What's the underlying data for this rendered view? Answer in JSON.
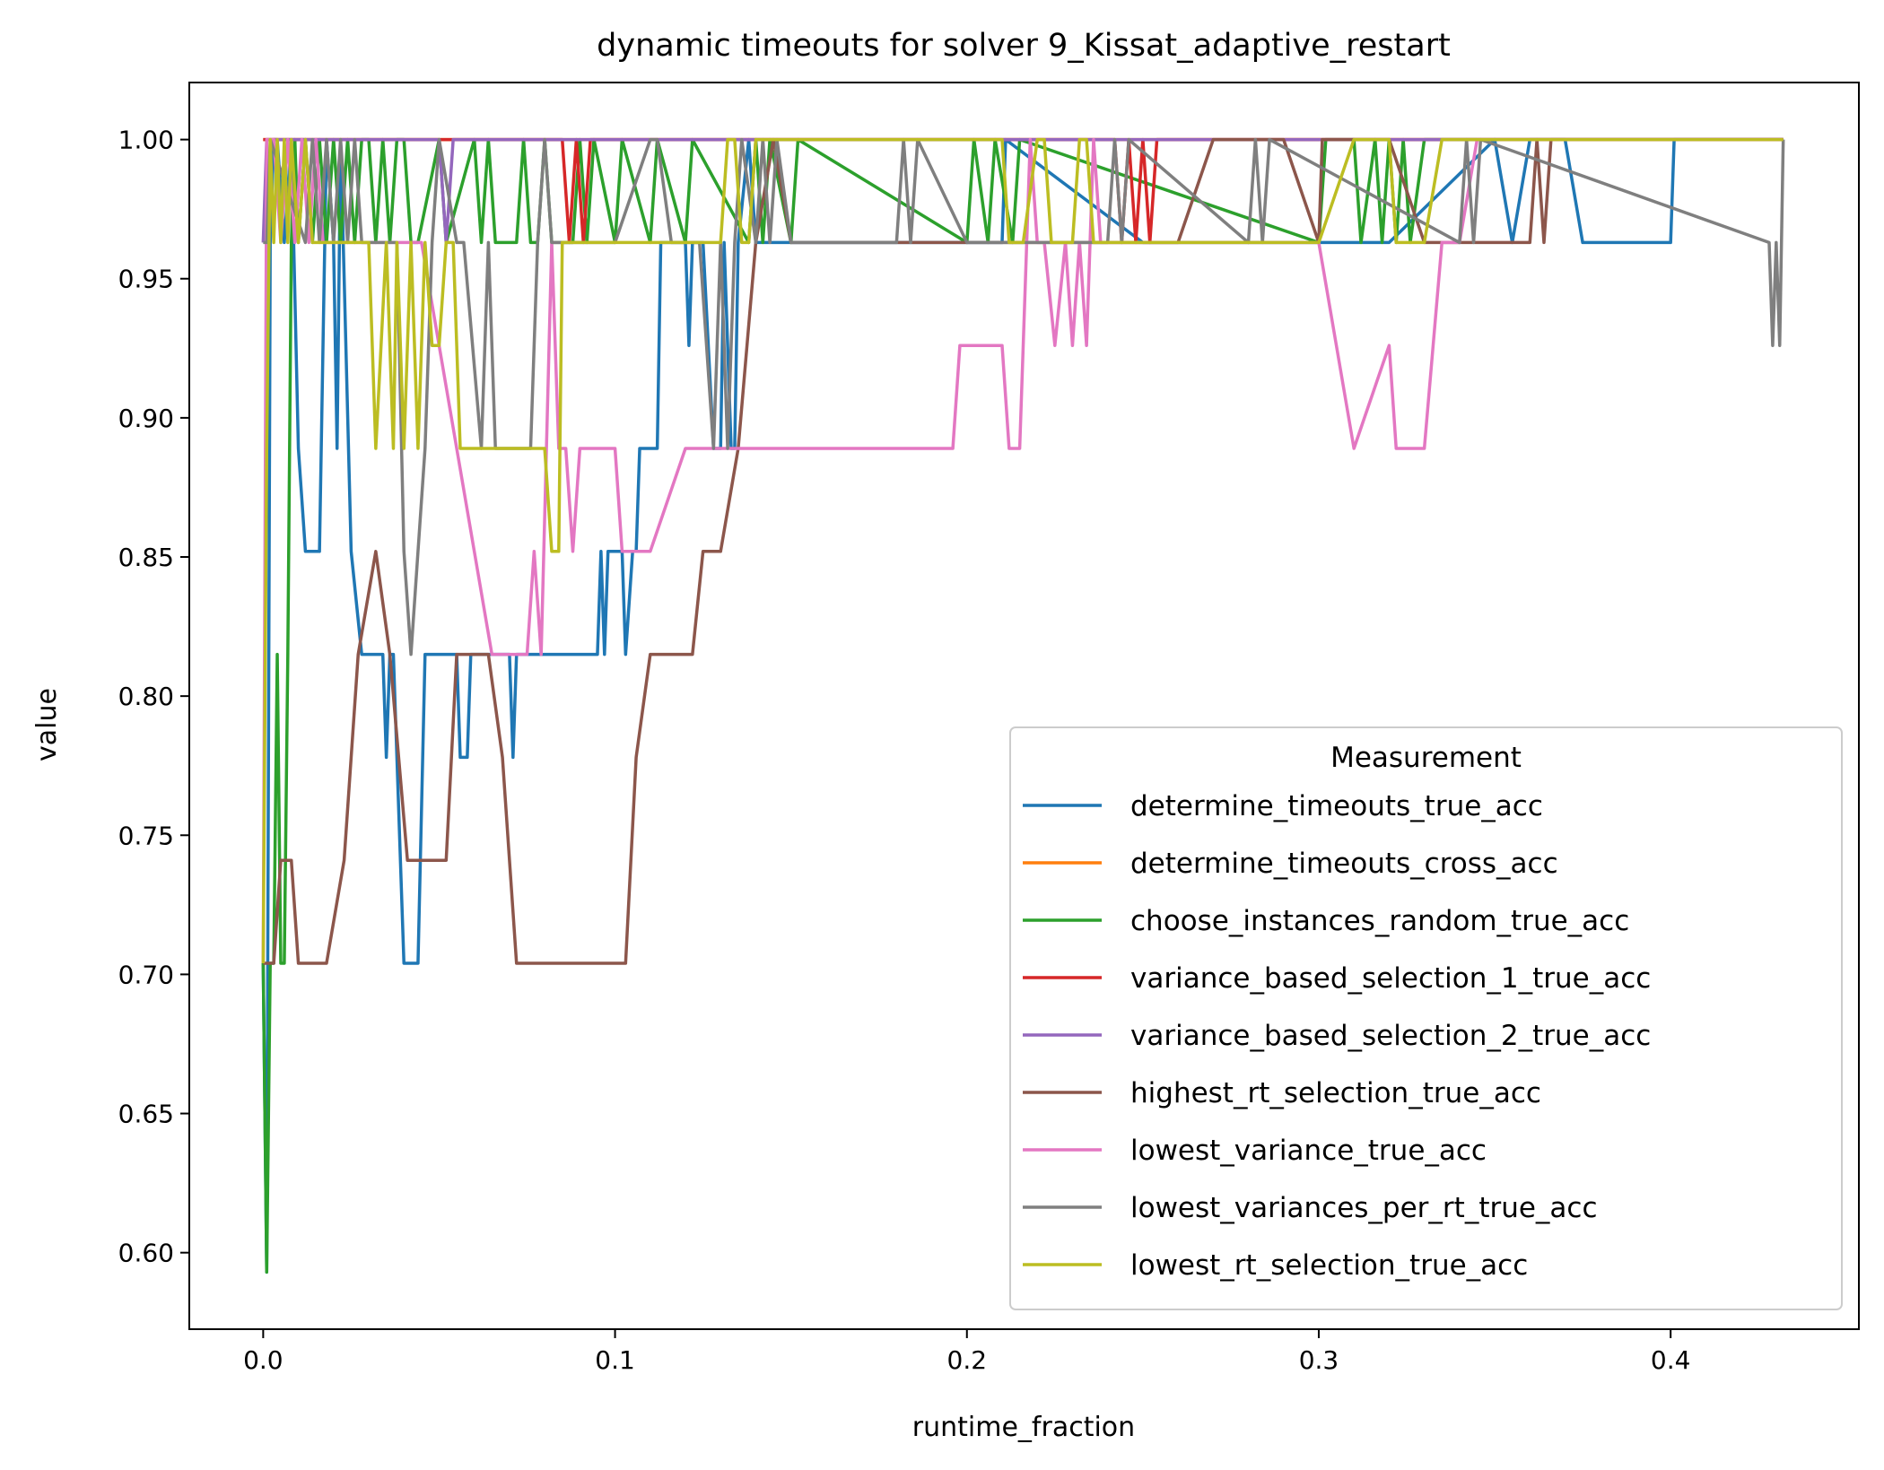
{
  "chart_data": {
    "type": "line",
    "title": "dynamic timeouts for solver 9_Kissat_adaptive_restart",
    "xlabel": "runtime_fraction",
    "ylabel": "value",
    "xlim": [
      -0.021,
      0.4535
    ],
    "ylim": [
      0.5725,
      1.0205
    ],
    "xticks": [
      0.0,
      0.1,
      0.2,
      0.3,
      0.4
    ],
    "xtick_labels": [
      "0.0",
      "0.1",
      "0.2",
      "0.3",
      "0.4"
    ],
    "yticks": [
      0.6,
      0.65,
      0.7,
      0.75,
      0.8,
      0.85,
      0.9,
      0.95,
      1.0
    ],
    "ytick_labels": [
      "0.60",
      "0.65",
      "0.70",
      "0.75",
      "0.80",
      "0.85",
      "0.90",
      "0.95",
      "1.00"
    ],
    "grid": false,
    "legend": {
      "title": "Measurement",
      "placement": "lower-right"
    },
    "series": [
      {
        "name": "determine_timeouts_true_acc",
        "color": "#1f77b4",
        "x": [
          0.0,
          0.001,
          0.002,
          0.003,
          0.004,
          0.006,
          0.008,
          0.01,
          0.012,
          0.016,
          0.018,
          0.02,
          0.021,
          0.022,
          0.025,
          0.028,
          0.034,
          0.035,
          0.036,
          0.037,
          0.04,
          0.044,
          0.046,
          0.047,
          0.055,
          0.056,
          0.058,
          0.059,
          0.06,
          0.07,
          0.071,
          0.072,
          0.075,
          0.095,
          0.096,
          0.097,
          0.098,
          0.102,
          0.103,
          0.105,
          0.106,
          0.107,
          0.112,
          0.113,
          0.114,
          0.12,
          0.121,
          0.122,
          0.124,
          0.125,
          0.128,
          0.13,
          0.131,
          0.133,
          0.134,
          0.135,
          0.138,
          0.14,
          0.141,
          0.15,
          0.2,
          0.21,
          0.211,
          0.25,
          0.3,
          0.32,
          0.35,
          0.355,
          0.36,
          0.37,
          0.375,
          0.4,
          0.401,
          0.432
        ],
        "y": [
          0.704,
          0.593,
          0.963,
          1.0,
          1.0,
          0.963,
          1.0,
          0.889,
          0.852,
          0.852,
          1.0,
          0.963,
          0.889,
          1.0,
          0.852,
          0.815,
          0.815,
          0.778,
          0.815,
          0.815,
          0.704,
          0.704,
          0.815,
          0.815,
          0.815,
          0.778,
          0.778,
          0.815,
          0.815,
          0.815,
          0.778,
          0.815,
          0.815,
          0.815,
          0.852,
          0.815,
          0.852,
          0.852,
          0.815,
          0.852,
          0.852,
          0.889,
          0.889,
          0.963,
          0.963,
          0.963,
          0.926,
          0.963,
          0.963,
          0.963,
          0.889,
          0.889,
          0.963,
          0.889,
          0.889,
          0.963,
          1.0,
          0.963,
          0.963,
          0.963,
          0.963,
          0.963,
          1.0,
          0.963,
          0.963,
          0.963,
          1.0,
          0.963,
          1.0,
          1.0,
          0.963,
          0.963,
          1.0,
          1.0
        ]
      },
      {
        "name": "determine_timeouts_cross_acc",
        "color": "#ff7f0e",
        "x": [
          0.0,
          0.001,
          0.432
        ],
        "y": [
          1.0,
          1.0,
          1.0
        ]
      },
      {
        "name": "choose_instances_random_true_acc",
        "color": "#2ca02c",
        "x": [
          0.0,
          0.001,
          0.002,
          0.003,
          0.004,
          0.005,
          0.006,
          0.007,
          0.008,
          0.009,
          0.01,
          0.012,
          0.014,
          0.016,
          0.018,
          0.02,
          0.022,
          0.024,
          0.026,
          0.028,
          0.03,
          0.032,
          0.034,
          0.036,
          0.038,
          0.04,
          0.042,
          0.044,
          0.05,
          0.052,
          0.06,
          0.062,
          0.064,
          0.066,
          0.068,
          0.07,
          0.072,
          0.074,
          0.076,
          0.078,
          0.08,
          0.082,
          0.088,
          0.09,
          0.092,
          0.094,
          0.1,
          0.102,
          0.11,
          0.112,
          0.12,
          0.122,
          0.138,
          0.14,
          0.142,
          0.144,
          0.15,
          0.152,
          0.2,
          0.202,
          0.206,
          0.208,
          0.213,
          0.215,
          0.3,
          0.302,
          0.31,
          0.312,
          0.316,
          0.318,
          0.32,
          0.322,
          0.324,
          0.326,
          0.33,
          0.432
        ],
        "y": [
          0.704,
          0.593,
          0.704,
          0.704,
          0.815,
          0.704,
          0.704,
          0.815,
          0.963,
          1.0,
          0.963,
          1.0,
          0.963,
          1.0,
          0.963,
          1.0,
          0.963,
          1.0,
          0.963,
          1.0,
          1.0,
          0.963,
          1.0,
          0.963,
          1.0,
          1.0,
          0.963,
          0.963,
          1.0,
          0.963,
          1.0,
          0.963,
          1.0,
          0.963,
          0.963,
          0.963,
          0.963,
          1.0,
          0.963,
          0.963,
          1.0,
          0.963,
          0.963,
          1.0,
          0.963,
          1.0,
          0.963,
          1.0,
          0.963,
          1.0,
          0.963,
          1.0,
          0.963,
          1.0,
          0.963,
          1.0,
          0.963,
          1.0,
          0.963,
          1.0,
          0.963,
          1.0,
          0.963,
          1.0,
          0.963,
          1.0,
          1.0,
          0.963,
          1.0,
          0.963,
          1.0,
          0.963,
          1.0,
          0.963,
          1.0,
          1.0
        ]
      },
      {
        "name": "variance_based_selection_1_true_acc",
        "color": "#d62728",
        "x": [
          0.0,
          0.001,
          0.085,
          0.087,
          0.089,
          0.091,
          0.093,
          0.2,
          0.242,
          0.244,
          0.246,
          0.248,
          0.25,
          0.252,
          0.254,
          0.432
        ],
        "y": [
          1.0,
          1.0,
          1.0,
          0.963,
          1.0,
          0.963,
          1.0,
          1.0,
          1.0,
          0.963,
          1.0,
          0.963,
          1.0,
          0.963,
          1.0,
          1.0
        ]
      },
      {
        "name": "variance_based_selection_2_true_acc",
        "color": "#9467bd",
        "x": [
          0.0,
          0.001,
          0.002,
          0.05,
          0.052,
          0.054,
          0.432
        ],
        "y": [
          0.963,
          1.0,
          1.0,
          1.0,
          0.963,
          1.0,
          1.0
        ]
      },
      {
        "name": "highest_rt_selection_true_acc",
        "color": "#8c564b",
        "x": [
          0.0,
          0.003,
          0.005,
          0.008,
          0.01,
          0.014,
          0.018,
          0.023,
          0.027,
          0.032,
          0.036,
          0.041,
          0.045,
          0.049,
          0.052,
          0.055,
          0.06,
          0.064,
          0.068,
          0.07,
          0.072,
          0.08,
          0.09,
          0.1,
          0.103,
          0.106,
          0.11,
          0.114,
          0.118,
          0.122,
          0.125,
          0.127,
          0.13,
          0.135,
          0.14,
          0.145,
          0.15,
          0.26,
          0.27,
          0.28,
          0.29,
          0.3,
          0.301,
          0.32,
          0.33,
          0.34,
          0.35,
          0.36,
          0.362,
          0.364,
          0.366,
          0.432
        ],
        "y": [
          0.704,
          0.704,
          0.741,
          0.741,
          0.704,
          0.704,
          0.704,
          0.741,
          0.815,
          0.852,
          0.815,
          0.741,
          0.741,
          0.741,
          0.741,
          0.815,
          0.815,
          0.815,
          0.778,
          0.741,
          0.704,
          0.704,
          0.704,
          0.704,
          0.704,
          0.778,
          0.815,
          0.815,
          0.815,
          0.815,
          0.852,
          0.852,
          0.852,
          0.889,
          0.963,
          1.0,
          0.963,
          0.963,
          1.0,
          1.0,
          1.0,
          0.963,
          1.0,
          1.0,
          0.963,
          0.963,
          0.963,
          0.963,
          1.0,
          0.963,
          1.0,
          1.0
        ]
      },
      {
        "name": "lowest_variance_true_acc",
        "color": "#e377c2",
        "x": [
          0.0,
          0.001,
          0.003,
          0.005,
          0.007,
          0.009,
          0.011,
          0.013,
          0.015,
          0.017,
          0.019,
          0.04,
          0.045,
          0.06,
          0.065,
          0.07,
          0.075,
          0.077,
          0.079,
          0.082,
          0.084,
          0.086,
          0.088,
          0.09,
          0.092,
          0.094,
          0.1,
          0.102,
          0.104,
          0.11,
          0.12,
          0.13,
          0.15,
          0.19,
          0.196,
          0.198,
          0.2,
          0.21,
          0.212,
          0.215,
          0.218,
          0.22,
          0.222,
          0.225,
          0.228,
          0.23,
          0.232,
          0.234,
          0.236,
          0.238,
          0.24,
          0.3,
          0.31,
          0.32,
          0.322,
          0.33,
          0.335,
          0.34,
          0.345,
          0.432
        ],
        "y": [
          0.704,
          1.0,
          1.0,
          0.963,
          1.0,
          0.963,
          1.0,
          0.963,
          1.0,
          0.963,
          0.963,
          0.963,
          0.963,
          0.852,
          0.815,
          0.815,
          0.815,
          0.852,
          0.815,
          0.963,
          0.889,
          0.889,
          0.852,
          0.889,
          0.889,
          0.889,
          0.889,
          0.852,
          0.852,
          0.852,
          0.889,
          0.889,
          0.889,
          0.889,
          0.889,
          0.926,
          0.926,
          0.926,
          0.889,
          0.889,
          1.0,
          0.963,
          0.963,
          0.926,
          0.963,
          0.926,
          0.963,
          0.926,
          1.0,
          0.963,
          0.963,
          0.963,
          0.889,
          0.926,
          0.889,
          0.889,
          0.963,
          0.963,
          1.0,
          1.0
        ]
      },
      {
        "name": "lowest_variances_per_rt_true_acc",
        "color": "#7f7f7f",
        "x": [
          0.0,
          0.001,
          0.002,
          0.012,
          0.014,
          0.016,
          0.018,
          0.02,
          0.022,
          0.024,
          0.026,
          0.028,
          0.038,
          0.04,
          0.042,
          0.044,
          0.046,
          0.048,
          0.05,
          0.055,
          0.057,
          0.062,
          0.064,
          0.066,
          0.068,
          0.07,
          0.072,
          0.076,
          0.078,
          0.08,
          0.082,
          0.09,
          0.1,
          0.11,
          0.112,
          0.116,
          0.12,
          0.124,
          0.128,
          0.13,
          0.132,
          0.134,
          0.136,
          0.14,
          0.142,
          0.144,
          0.146,
          0.15,
          0.18,
          0.182,
          0.184,
          0.186,
          0.2,
          0.24,
          0.242,
          0.244,
          0.246,
          0.28,
          0.282,
          0.284,
          0.286,
          0.34,
          0.342,
          0.344,
          0.346,
          0.428,
          0.429,
          0.43,
          0.431,
          0.432
        ],
        "y": [
          0.963,
          0.963,
          1.0,
          0.963,
          1.0,
          0.963,
          1.0,
          0.963,
          1.0,
          0.963,
          1.0,
          0.963,
          0.963,
          0.852,
          0.815,
          0.852,
          0.889,
          0.963,
          1.0,
          0.963,
          0.963,
          0.889,
          0.963,
          0.889,
          0.889,
          0.889,
          0.889,
          0.889,
          0.963,
          1.0,
          0.963,
          0.963,
          0.963,
          1.0,
          1.0,
          0.963,
          0.963,
          0.963,
          0.889,
          0.963,
          0.889,
          0.963,
          1.0,
          0.963,
          1.0,
          0.963,
          1.0,
          0.963,
          0.963,
          1.0,
          0.963,
          1.0,
          0.963,
          0.963,
          1.0,
          0.963,
          1.0,
          0.963,
          1.0,
          0.963,
          1.0,
          0.963,
          1.0,
          0.963,
          1.0,
          0.963,
          0.926,
          0.963,
          0.926,
          1.0
        ]
      },
      {
        "name": "lowest_rt_selection_true_acc",
        "color": "#bcbd22",
        "x": [
          0.0,
          0.001,
          0.002,
          0.003,
          0.004,
          0.005,
          0.006,
          0.007,
          0.008,
          0.01,
          0.012,
          0.014,
          0.016,
          0.02,
          0.03,
          0.032,
          0.035,
          0.037,
          0.038,
          0.04,
          0.042,
          0.044,
          0.046,
          0.048,
          0.05,
          0.052,
          0.054,
          0.056,
          0.058,
          0.06,
          0.07,
          0.075,
          0.08,
          0.082,
          0.084,
          0.085,
          0.09,
          0.1,
          0.11,
          0.12,
          0.128,
          0.13,
          0.132,
          0.134,
          0.136,
          0.138,
          0.14,
          0.142,
          0.144,
          0.15,
          0.16,
          0.18,
          0.2,
          0.21,
          0.212,
          0.214,
          0.216,
          0.22,
          0.222,
          0.224,
          0.23,
          0.232,
          0.234,
          0.236,
          0.24,
          0.25,
          0.3,
          0.31,
          0.32,
          0.322,
          0.33,
          0.335,
          0.34,
          0.432
        ],
        "y": [
          0.704,
          0.889,
          1.0,
          0.963,
          1.0,
          0.963,
          1.0,
          0.963,
          1.0,
          0.963,
          1.0,
          0.963,
          0.963,
          0.963,
          0.963,
          0.889,
          0.963,
          0.889,
          0.963,
          0.889,
          0.963,
          0.889,
          0.963,
          0.926,
          0.926,
          0.963,
          0.963,
          0.889,
          0.889,
          0.889,
          0.889,
          0.889,
          0.889,
          0.852,
          0.852,
          0.963,
          0.963,
          0.963,
          0.963,
          0.963,
          0.963,
          0.963,
          1.0,
          1.0,
          0.963,
          0.963,
          1.0,
          1.0,
          1.0,
          1.0,
          1.0,
          1.0,
          1.0,
          1.0,
          0.963,
          0.963,
          0.963,
          1.0,
          1.0,
          0.963,
          0.963,
          1.0,
          1.0,
          0.963,
          0.963,
          0.963,
          0.963,
          1.0,
          1.0,
          0.963,
          0.963,
          1.0,
          1.0,
          1.0
        ]
      }
    ]
  }
}
